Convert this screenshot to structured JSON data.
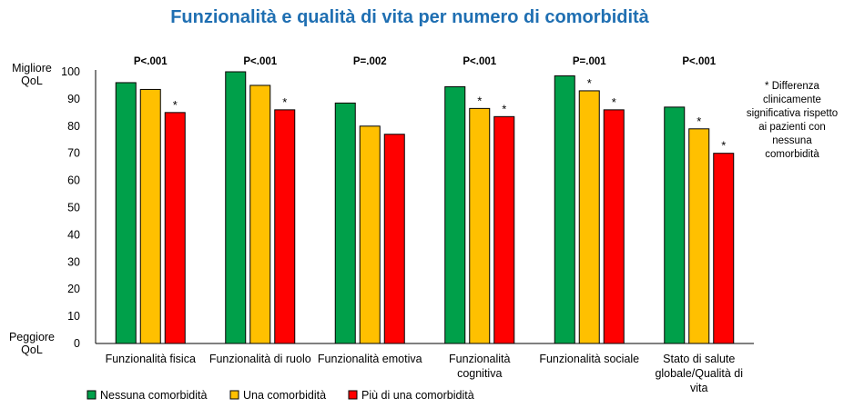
{
  "chart_data": {
    "type": "bar",
    "title": "Funzionalità e qualità di vita per numero di comorbidità",
    "ylim": [
      0,
      100
    ],
    "yticks": [
      0,
      10,
      20,
      30,
      40,
      50,
      60,
      70,
      80,
      90,
      100
    ],
    "ylabel_top": [
      "Migliore",
      "QoL"
    ],
    "ylabel_bottom": [
      "Peggiore",
      "QoL"
    ],
    "categories": [
      [
        "Funzionalità fisica"
      ],
      [
        "Funzionalità di ruolo"
      ],
      [
        "Funzionalità emotiva"
      ],
      [
        "Funzionalità",
        "cognitiva"
      ],
      [
        "Funzionalità sociale"
      ],
      [
        "Stato di salute",
        "globale/Qualità di",
        "vita"
      ]
    ],
    "p_values": [
      "P<.001",
      "P<.001",
      "P=.002",
      "P<.001",
      "P=.001",
      "P<.001"
    ],
    "series": [
      {
        "name": "Nessuna comorbidità",
        "color": "#00A04A",
        "values": [
          96,
          100,
          88.5,
          94.5,
          98.5,
          87
        ],
        "stars": [
          false,
          false,
          false,
          false,
          false,
          false
        ]
      },
      {
        "name": "Una comorbidità",
        "color": "#FFC000",
        "values": [
          93.5,
          95,
          80,
          86.5,
          93,
          79
        ],
        "stars": [
          false,
          false,
          false,
          true,
          true,
          true
        ]
      },
      {
        "name": "Più di una comorbidità",
        "color": "#FF0000",
        "values": [
          85,
          86,
          77,
          83.5,
          86,
          70
        ],
        "stars": [
          true,
          true,
          false,
          true,
          true,
          true
        ]
      }
    ],
    "star_symbol": "*",
    "annotation": [
      "* Differenza",
      "clinicamente",
      "significativa rispetto",
      "ai pazienti con",
      "nessuna",
      "comorbidità"
    ],
    "grid": false,
    "legend_position": "bottom-left"
  }
}
